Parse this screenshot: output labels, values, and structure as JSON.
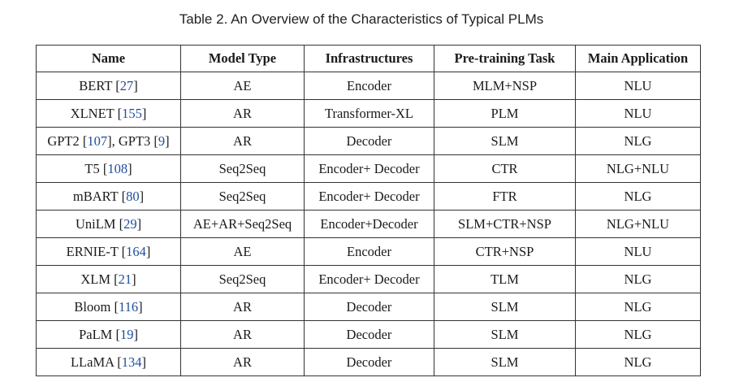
{
  "caption": "Table 2.  An Overview of the Characteristics of Typical PLMs",
  "columns": [
    "Name",
    "Model Type",
    "Infrastructures",
    "Pre-training Task",
    "Main Application"
  ],
  "rows": [
    {
      "name": "BERT",
      "refs": [
        "27"
      ],
      "model_type": "AE",
      "infrastructure": "Encoder",
      "task": "MLM+NSP",
      "application": "NLU"
    },
    {
      "name": "XLNET",
      "refs": [
        "155"
      ],
      "model_type": "AR",
      "infrastructure": "Transformer-XL",
      "task": "PLM",
      "application": "NLU"
    },
    {
      "name": "GPT2",
      "refs": [
        "107"
      ],
      "name2": "GPT3",
      "refs2": [
        "9"
      ],
      "model_type": "AR",
      "infrastructure": "Decoder",
      "task": "SLM",
      "application": "NLG"
    },
    {
      "name": "T5",
      "refs": [
        "108"
      ],
      "model_type": "Seq2Seq",
      "infrastructure": "Encoder+ Decoder",
      "task": "CTR",
      "application": "NLG+NLU"
    },
    {
      "name": "mBART",
      "refs": [
        "80"
      ],
      "model_type": "Seq2Seq",
      "infrastructure": "Encoder+ Decoder",
      "task": "FTR",
      "application": "NLG"
    },
    {
      "name": "UniLM",
      "refs": [
        "29"
      ],
      "model_type": "AE+AR+Seq2Seq",
      "infrastructure": "Encoder+Decoder",
      "task": "SLM+CTR+NSP",
      "application": "NLG+NLU"
    },
    {
      "name": "ERNIE-T",
      "refs": [
        "164"
      ],
      "model_type": "AE",
      "infrastructure": "Encoder",
      "task": "CTR+NSP",
      "application": "NLU"
    },
    {
      "name": "XLM",
      "refs": [
        "21"
      ],
      "model_type": "Seq2Seq",
      "infrastructure": "Encoder+ Decoder",
      "task": "TLM",
      "application": "NLG"
    },
    {
      "name": "Bloom",
      "refs": [
        "116"
      ],
      "model_type": "AR",
      "infrastructure": "Decoder",
      "task": "SLM",
      "application": "NLG"
    },
    {
      "name": "PaLM",
      "refs": [
        "19"
      ],
      "model_type": "AR",
      "infrastructure": "Decoder",
      "task": "SLM",
      "application": "NLG"
    },
    {
      "name": "LLaMA",
      "refs": [
        "134"
      ],
      "model_type": "AR",
      "infrastructure": "Decoder",
      "task": "SLM",
      "application": "NLG"
    }
  ]
}
